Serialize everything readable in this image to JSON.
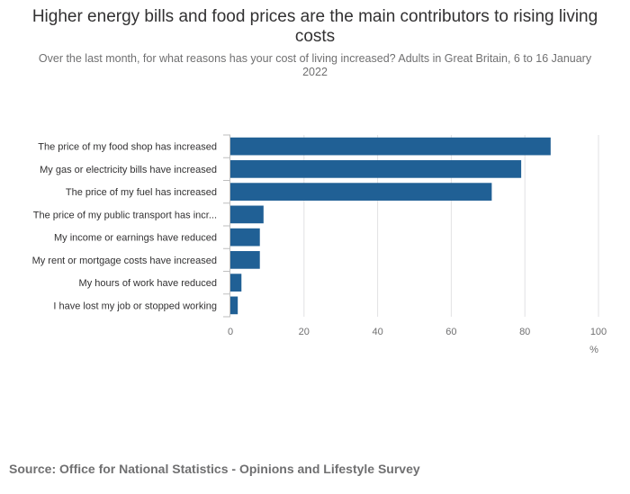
{
  "title": "Higher energy bills and food prices are the main contributors to rising living costs",
  "subtitle": "Over the last month, for what reasons has your cost of living increased? Adults in Great Britain, 6 to 16 January 2022",
  "source": "Source: Office for National Statistics - Opinions and Lifestyle Survey",
  "colors": {
    "bar": "#206095",
    "grid": "#e2e2e3",
    "text": "#323132",
    "muted": "#707071"
  },
  "chart_data": {
    "type": "bar",
    "orientation": "horizontal",
    "title": "Higher energy bills and food prices are the main contributors to rising living costs",
    "xlabel": "%",
    "ylabel": "",
    "xlim": [
      0,
      100
    ],
    "xticks": [
      0,
      20,
      40,
      60,
      80,
      100
    ],
    "grid": true,
    "categories": [
      "The price of my food shop has increased",
      "My gas or electricity bills have increased",
      "The price of my fuel has increased",
      "The price of my public transport has incr...",
      "My income or earnings have reduced",
      "My rent or mortgage costs have increased",
      "My hours of work have reduced",
      "I have lost my job or stopped working"
    ],
    "values": [
      87,
      79,
      71,
      9,
      8,
      8,
      3,
      2
    ]
  }
}
